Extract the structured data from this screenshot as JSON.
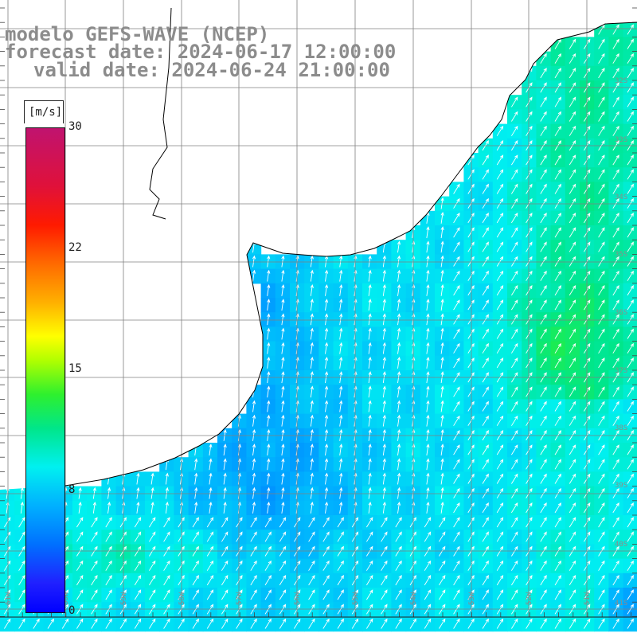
{
  "header": {
    "line1": "modelo GEFS-WAVE (NCEP)",
    "line2": "forecast date: 2024-06-17 12:00:00",
    "line3": "valid date: 2024-06-24 21:00:00"
  },
  "colorbar": {
    "unit": "[m/s]",
    "ticks": [
      {
        "label": "30",
        "value": 30
      },
      {
        "label": "22",
        "value": 22
      },
      {
        "label": "15",
        "value": 15
      },
      {
        "label": "8",
        "value": 8
      },
      {
        "label": "0",
        "value": 0
      }
    ],
    "colors_top_to_bottom": [
      "#c0136f",
      "#e0113a",
      "#ff1a00",
      "#ff6a00",
      "#ffb000",
      "#ffff00",
      "#2ef02e",
      "#00e68a",
      "#00f0f0",
      "#00b0ff",
      "#0070ff",
      "#0000ff"
    ]
  },
  "map": {
    "variable": "wind speed with direction arrows",
    "lat_labels": [
      "32S",
      "33S",
      "34S",
      "35S",
      "36S",
      "37S",
      "38S",
      "39S",
      "40S",
      "41S"
    ],
    "lon_labels": [
      "61W",
      "60W",
      "59W",
      "58W",
      "57W",
      "56W",
      "55W",
      "54W",
      "53W",
      "52W",
      "51W"
    ],
    "land_color": "#ffffff",
    "grid_color": "#808080",
    "arrow_color": "#ffffff",
    "coast_color": "#000000"
  }
}
